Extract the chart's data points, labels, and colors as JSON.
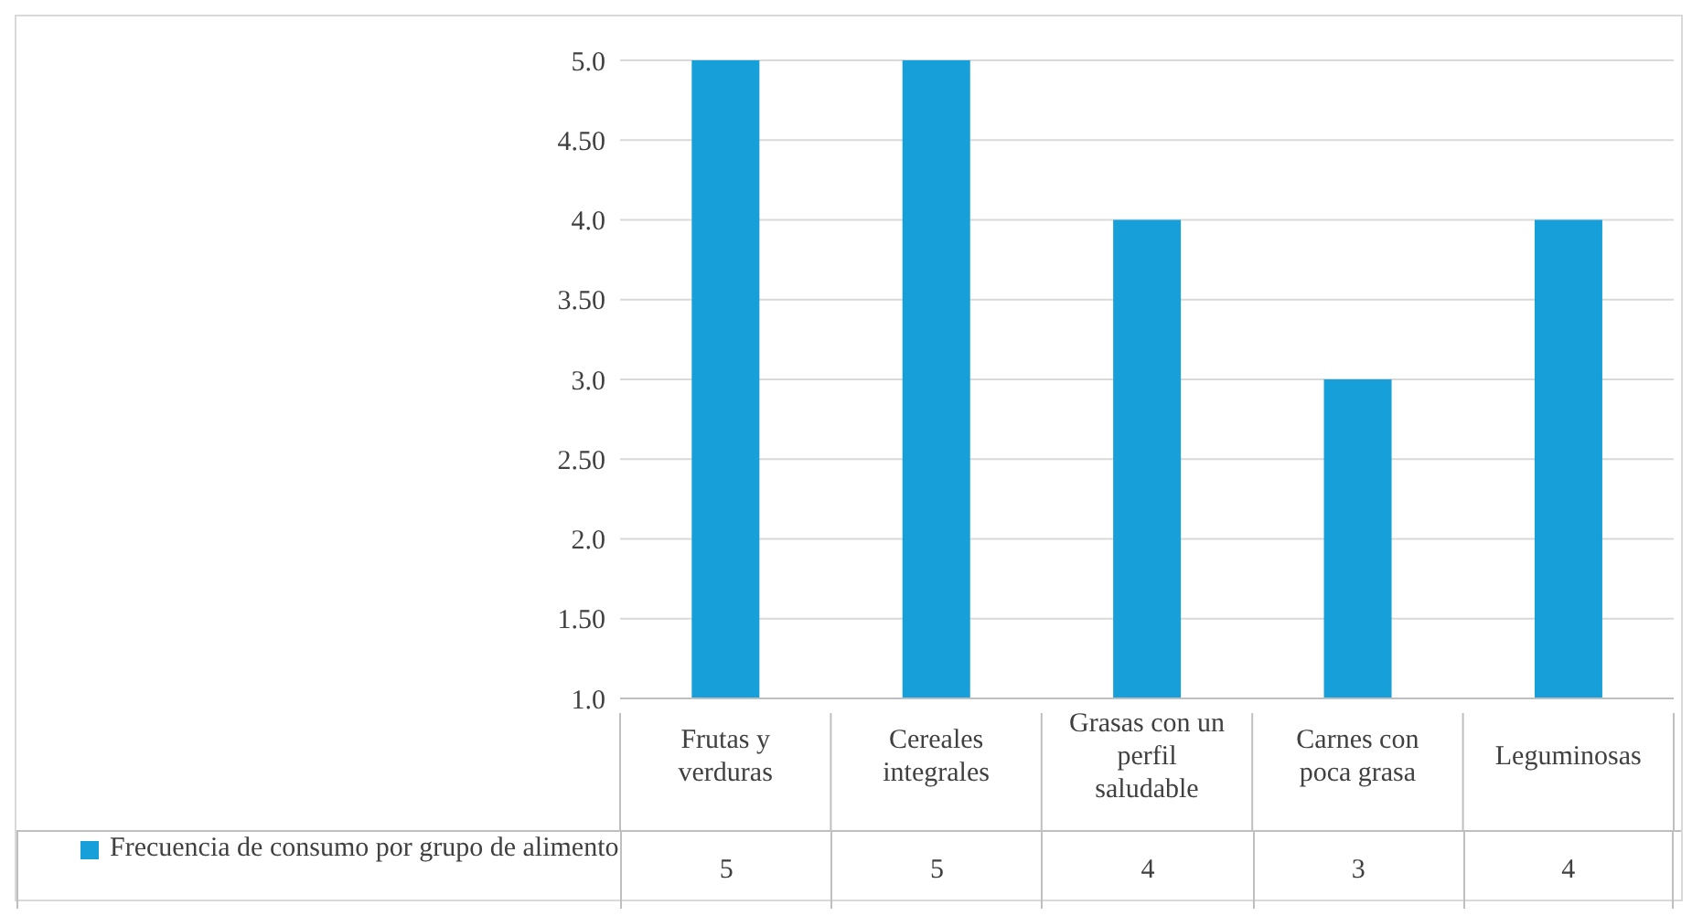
{
  "chart_data": {
    "type": "bar",
    "categories": [
      "Frutas y verduras",
      "Cereales integrales",
      "Grasas con un perfil saludable",
      "Carnes con poca grasa",
      "Leguminosas"
    ],
    "series": [
      {
        "name": "Frecuencia de consumo por grupo de alimento",
        "color": "#169fd8",
        "values": [
          5,
          5,
          4,
          3,
          4
        ]
      }
    ],
    "ylim": [
      1,
      5
    ],
    "yticks": [
      {
        "value": 5,
        "label": "5.0"
      },
      {
        "value": 4.5,
        "label": "4.50"
      },
      {
        "value": 4,
        "label": "4.0"
      },
      {
        "value": 3.5,
        "label": "3.50"
      },
      {
        "value": 3,
        "label": "3.0"
      },
      {
        "value": 2.5,
        "label": "2.50"
      },
      {
        "value": 2,
        "label": "2.0"
      },
      {
        "value": 1.5,
        "label": "1.50"
      },
      {
        "value": 1,
        "label": "1.0"
      }
    ],
    "grid": "y",
    "legend": "bottom",
    "data_labels": true
  }
}
